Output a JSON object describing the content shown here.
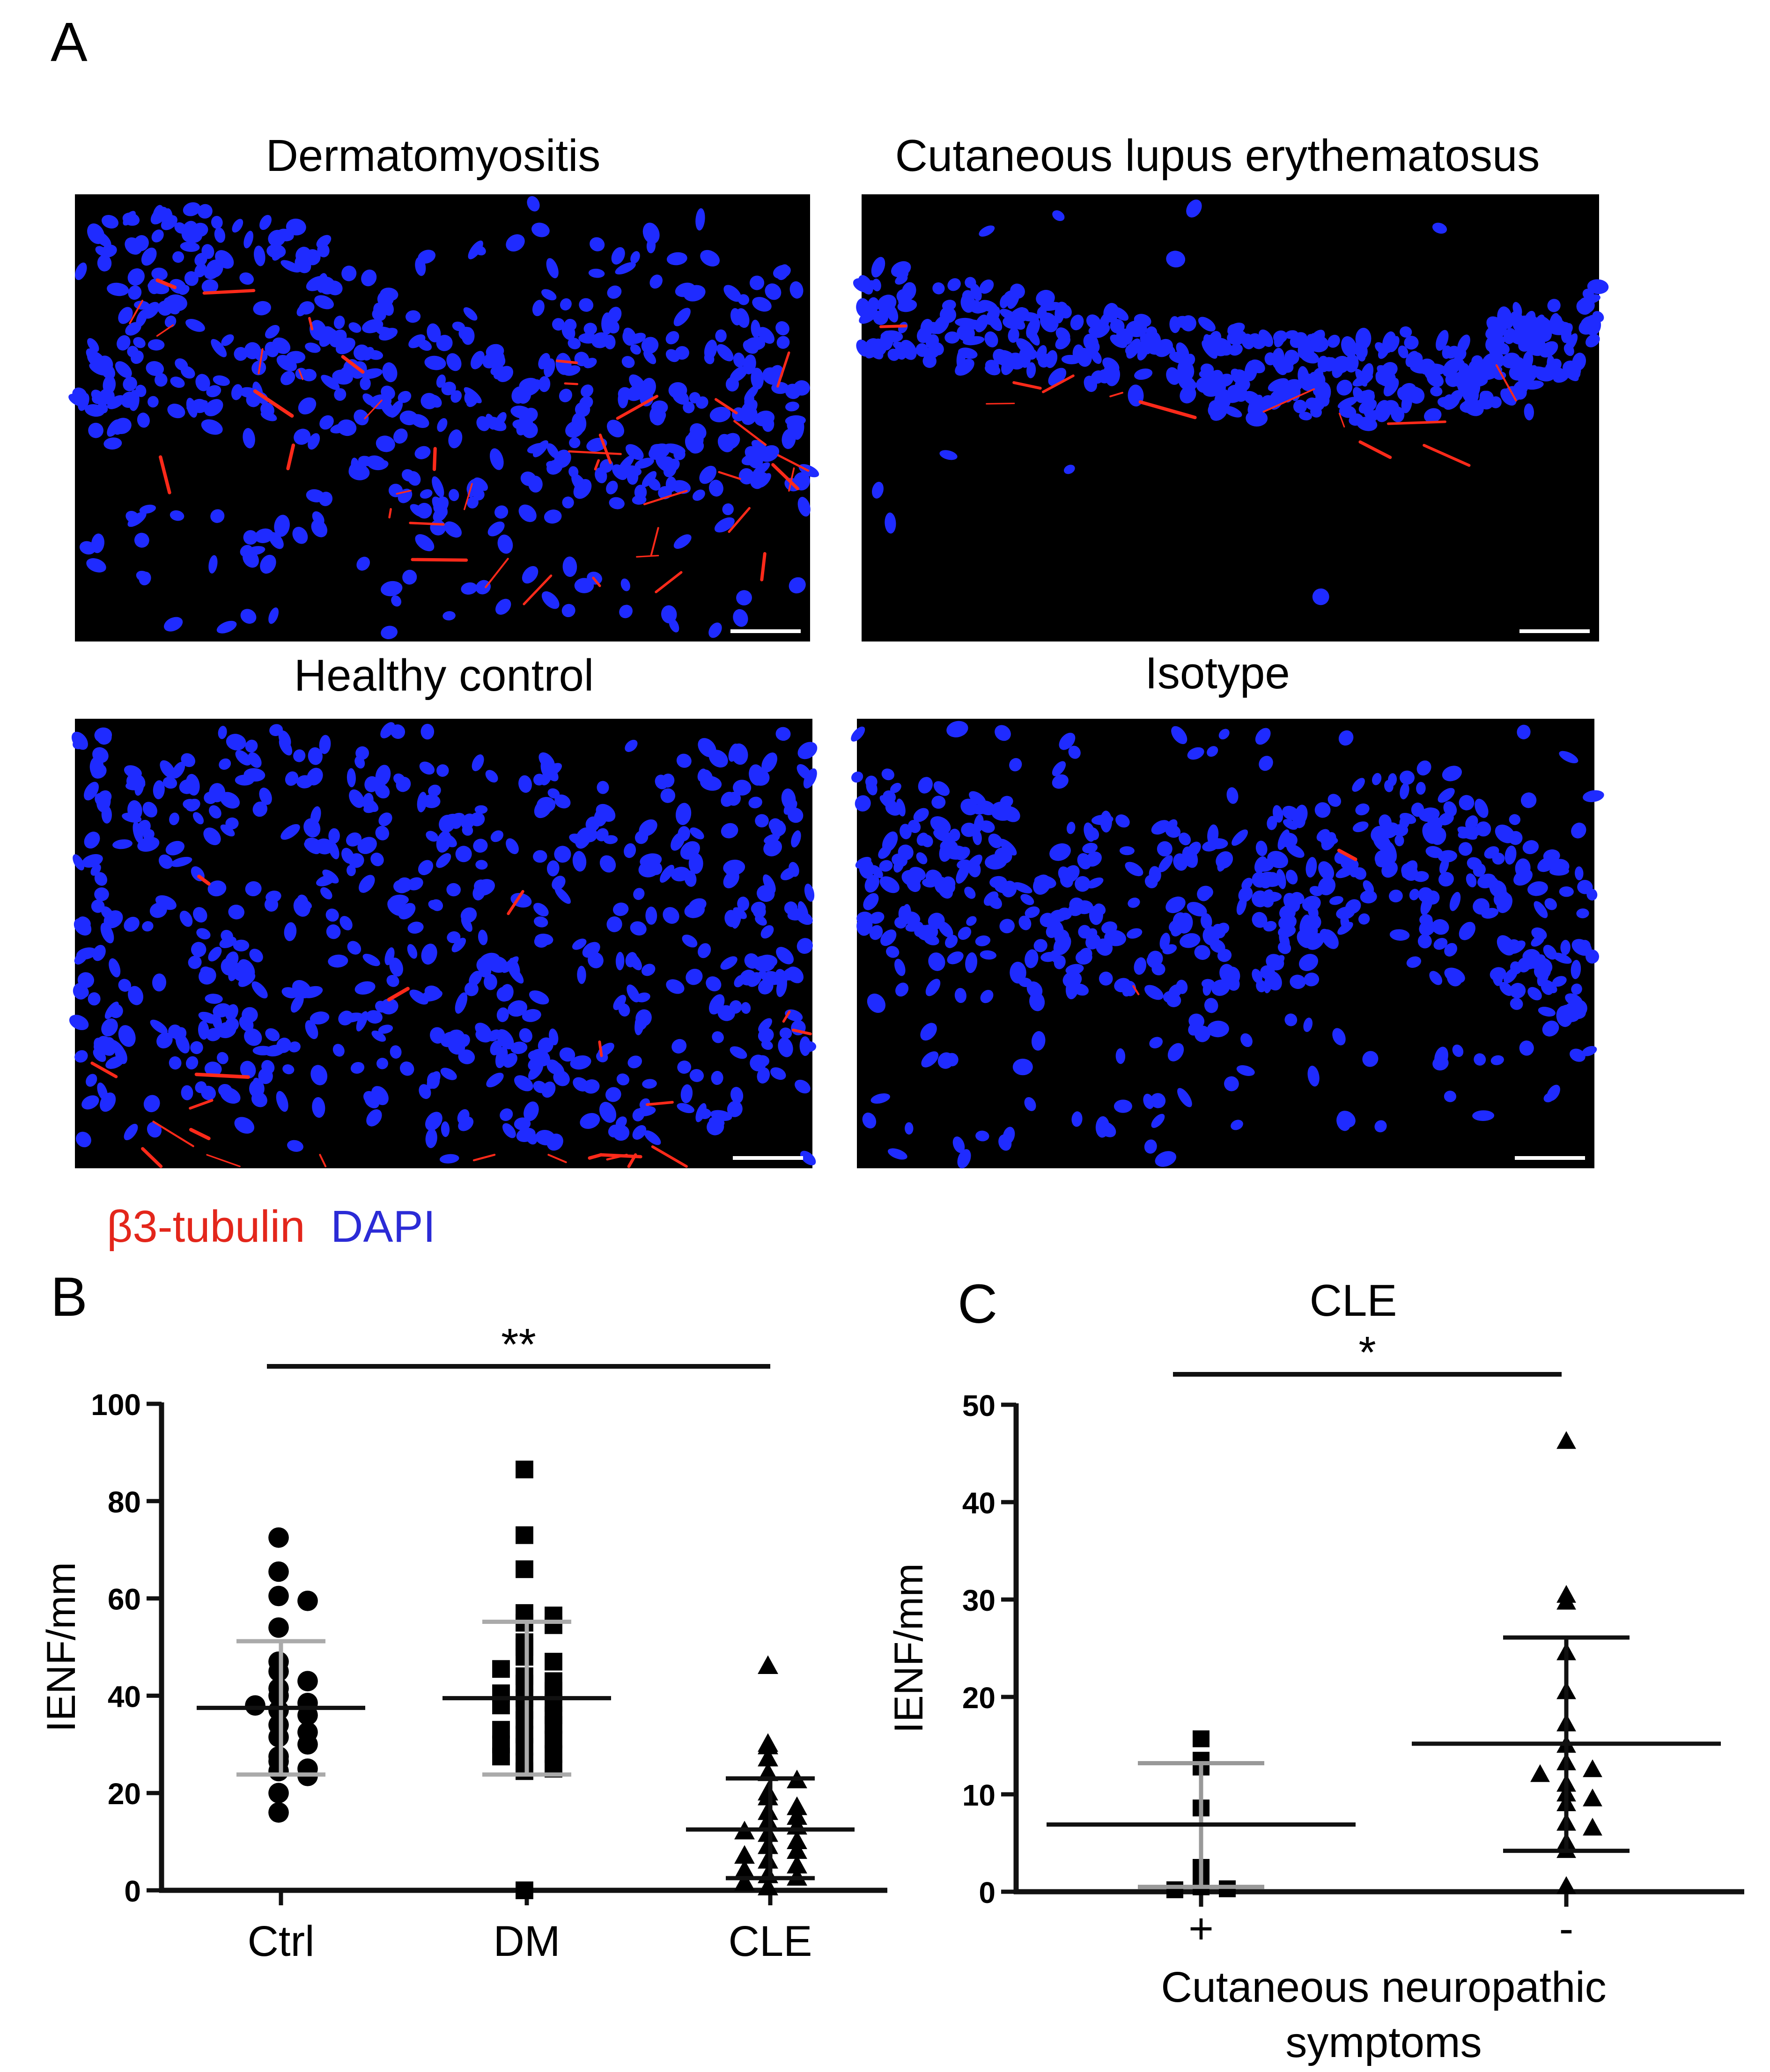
{
  "panel_letters": [
    "A",
    "B",
    "C"
  ],
  "micrographs": {
    "titles": [
      "Dermatomyositis",
      "Cutaneous lupus erythematosus",
      "Healthy control",
      "Isotype"
    ],
    "legend": {
      "tubulin_label": "β3-tubulin",
      "dapi_label": "DAPI",
      "tubulin_color": "#e3261b",
      "dapi_color": "#2b2bd6"
    },
    "colors": {
      "background": "#000000",
      "nuclei": "#1f2bff",
      "fibers": "#ff2a1a",
      "scale_bar": "#ffffff"
    }
  },
  "chart_data": [
    {
      "type": "scatter",
      "panel": "B",
      "title": "",
      "xlabel": "",
      "ylabel": "IENF/mm",
      "ylim": [
        0,
        100
      ],
      "yticks": [
        0,
        20,
        40,
        60,
        80,
        100
      ],
      "categories": [
        "Ctrl",
        "DM",
        "CLE"
      ],
      "significance": {
        "label": "**",
        "from": "Ctrl",
        "to": "CLE"
      },
      "series": [
        {
          "category": "Ctrl",
          "marker": "circle",
          "mean": 37.5,
          "sd_low": 23.8,
          "sd_high": 51.2,
          "error_color": "#aaaaaa",
          "mean_color": "#111111",
          "values": [
            72.5,
            65.5,
            60.5,
            59.5,
            54,
            47,
            45,
            43,
            41.5,
            40,
            38.5,
            38,
            37,
            36,
            34,
            32.5,
            31.5,
            30,
            27.5,
            26.5,
            25,
            24.5,
            23.5,
            20,
            16
          ]
        },
        {
          "category": "DM",
          "marker": "square",
          "mean": 39.5,
          "sd_low": 23.8,
          "sd_high": 55.2,
          "error_color": "#aaaaaa",
          "mean_color": "#111111",
          "values": [
            86.5,
            73,
            66,
            57,
            56.5,
            55,
            54.5,
            51,
            50,
            48,
            47,
            45.5,
            44,
            43,
            42.5,
            41,
            40.5,
            39.5,
            38.5,
            38,
            37,
            36,
            35,
            34,
            33,
            32,
            31,
            30,
            29.5,
            28,
            27.5,
            26.5,
            25,
            24.5,
            0
          ]
        },
        {
          "category": "CLE",
          "marker": "triangle",
          "mean": 12.5,
          "sd_low": 2.5,
          "sd_high": 23,
          "error_color": "#111111",
          "mean_color": "#111111",
          "values": [
            46,
            30,
            29.5,
            27,
            24,
            22.5,
            20,
            19,
            17,
            16,
            15,
            14,
            13,
            12,
            11.5,
            10,
            9,
            8,
            7,
            6,
            5,
            4,
            3,
            2.5,
            1.5,
            0.5
          ]
        }
      ]
    },
    {
      "type": "scatter",
      "panel": "C",
      "title": "CLE",
      "xlabel": "Cutaneous neuropathic symptoms",
      "ylabel": "IENF/mm",
      "ylim": [
        0,
        50
      ],
      "yticks": [
        0,
        10,
        20,
        30,
        40,
        50
      ],
      "categories": [
        "+",
        "-"
      ],
      "significance": {
        "label": "*",
        "from": "+",
        "to": "-"
      },
      "series": [
        {
          "category": "+",
          "marker": "square",
          "mean": 6.9,
          "sd_low": 0.5,
          "sd_high": 13.2,
          "error_color": "#999999",
          "mean_color": "#111111",
          "values": [
            15.7,
            13.5,
            12.8,
            8.6,
            2.5,
            0.8,
            0.5,
            0.3,
            0.2
          ]
        },
        {
          "category": "-",
          "marker": "triangle",
          "mean": 15.2,
          "sd_low": 4.2,
          "sd_high": 26.1,
          "error_color": "#111111",
          "mean_color": "#111111",
          "values": [
            46.2,
            30.4,
            29.7,
            24.5,
            20.5,
            17.2,
            15,
            13.2,
            12.5,
            12,
            11,
            10,
            9.5,
            9,
            7,
            6.5,
            5,
            4.2,
            0.5
          ]
        }
      ]
    }
  ]
}
